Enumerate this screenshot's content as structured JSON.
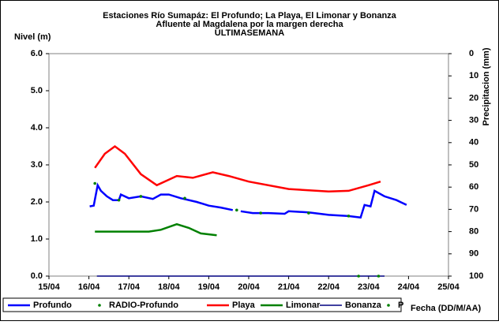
{
  "chart_data": {
    "type": "line",
    "title": "Estaciones Río Sumapáz: El Profundo; La Playa, El Limonar y Bonanza",
    "subtitle": [
      "Afluente al Magdalena por la margen derecha",
      "ULTIMASEMANA"
    ],
    "y_label": "Nivel (m)",
    "y2_label": "Precipitacion (mm)",
    "x_label": "Fecha (DD/M/AA)",
    "xlim": [
      15,
      25
    ],
    "xticks": [
      {
        "value": 15,
        "label": "15/04"
      },
      {
        "value": 16,
        "label": "16/04"
      },
      {
        "value": 17,
        "label": "17/04"
      },
      {
        "value": 18,
        "label": "18/04"
      },
      {
        "value": 19,
        "label": "19/04"
      },
      {
        "value": 20,
        "label": "20/04"
      },
      {
        "value": 21,
        "label": "21/04"
      },
      {
        "value": 22,
        "label": "22/04"
      },
      {
        "value": 23,
        "label": "23/04"
      },
      {
        "value": 24,
        "label": "24/04"
      },
      {
        "value": 25,
        "label": "25/04"
      }
    ],
    "ylim": [
      0,
      6
    ],
    "yticks": [
      {
        "value": 0,
        "label": "0.0"
      },
      {
        "value": 1,
        "label": "1.0"
      },
      {
        "value": 2,
        "label": "2.0"
      },
      {
        "value": 3,
        "label": "3.0"
      },
      {
        "value": 4,
        "label": "4.0"
      },
      {
        "value": 5,
        "label": "5.0"
      },
      {
        "value": 6,
        "label": "6.0"
      }
    ],
    "y2lim": [
      0,
      100
    ],
    "y2_reversed": true,
    "y2ticks": [
      0,
      10,
      20,
      30,
      40,
      50,
      60,
      70,
      80,
      90,
      100
    ],
    "series": [
      {
        "name": "Profundo",
        "color": "#0000ff",
        "style": "line",
        "x": [
          16.02,
          16.12,
          16.22,
          16.3,
          16.45,
          16.6,
          16.75,
          16.8,
          17.0,
          17.3,
          17.6,
          17.8,
          18.0,
          18.3,
          18.7,
          19.0,
          19.3,
          19.6,
          19.7,
          19.8,
          20.1,
          20.5,
          20.9,
          21.0,
          21.5,
          22.0,
          22.5,
          22.8,
          22.9,
          23.05,
          23.15,
          23.4,
          23.7,
          23.95
        ],
        "values": [
          1.88,
          1.9,
          2.45,
          2.3,
          2.15,
          2.05,
          2.05,
          2.2,
          2.1,
          2.15,
          2.08,
          2.2,
          2.2,
          2.1,
          2.0,
          1.9,
          1.85,
          1.78,
          null,
          1.75,
          1.7,
          1.7,
          1.68,
          1.75,
          1.72,
          1.65,
          1.62,
          1.58,
          1.92,
          1.88,
          2.3,
          2.15,
          2.05,
          1.92
        ]
      },
      {
        "name": "RADIO-Profundo",
        "color": "#008000",
        "style": "dots",
        "x": [
          16.15,
          16.75,
          17.3,
          18.4,
          19.7,
          20.3,
          21.5,
          22.5
        ],
        "values": [
          2.5,
          2.05,
          2.15,
          2.1,
          1.78,
          1.7,
          1.7,
          1.62
        ]
      },
      {
        "name": "Playa",
        "color": "#ff0000",
        "style": "line",
        "x": [
          16.15,
          16.4,
          16.65,
          16.9,
          17.3,
          17.7,
          18.2,
          18.6,
          19.1,
          19.5,
          20.0,
          21.0,
          22.0,
          22.5,
          23.0,
          23.3
        ],
        "values": [
          2.92,
          3.3,
          3.5,
          3.3,
          2.75,
          2.45,
          2.7,
          2.65,
          2.8,
          2.7,
          2.55,
          2.35,
          2.28,
          2.3,
          2.45,
          2.55
        ]
      },
      {
        "name": "Limonar",
        "color": "#008000",
        "style": "line",
        "x": [
          16.15,
          17.0,
          17.5,
          17.8,
          18.2,
          18.5,
          18.8,
          19.2
        ],
        "values": [
          1.2,
          1.2,
          1.2,
          1.25,
          1.4,
          1.3,
          1.15,
          1.1
        ]
      },
      {
        "name": "Bonanza",
        "color": "#000080",
        "style": "line",
        "x": [
          16.2,
          23.4
        ],
        "values": [
          0,
          0
        ]
      },
      {
        "name": "P",
        "color": "#008000",
        "style": "dots",
        "axis": "y2",
        "x": [
          22.75,
          23.25
        ],
        "values": [
          100,
          100
        ]
      }
    ]
  }
}
